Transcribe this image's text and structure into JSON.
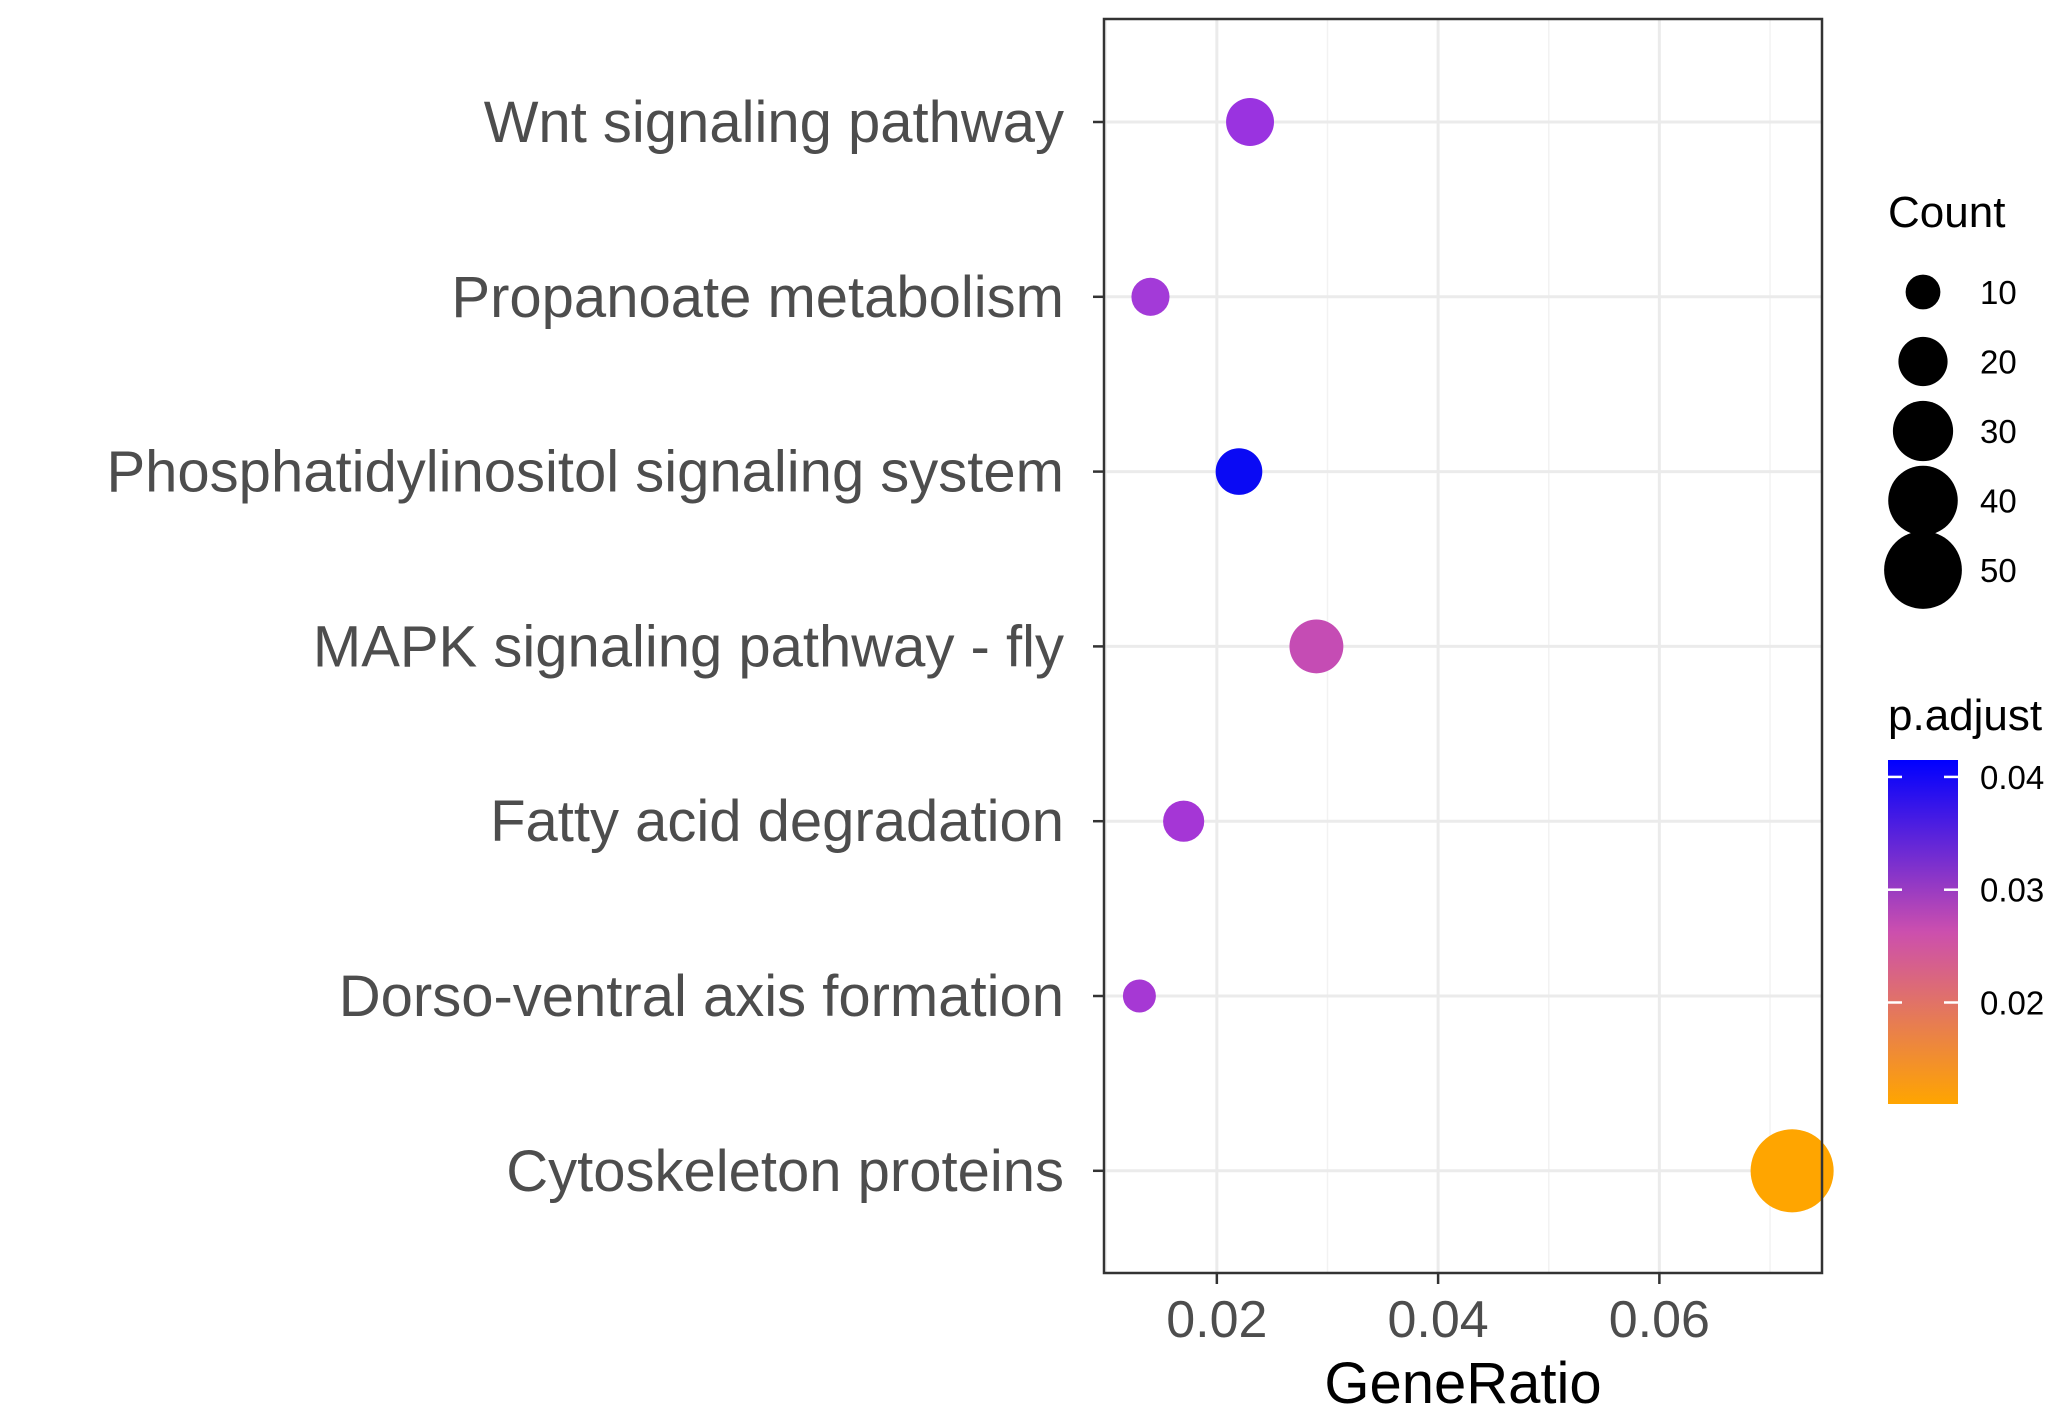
{
  "chart_data": {
    "type": "scatter",
    "title": "",
    "xlabel": "GeneRatio",
    "ylabel": "",
    "xlim": [
      0.0098,
      0.0747
    ],
    "x_ticks": [
      0.02,
      0.04,
      0.06
    ],
    "x_tick_labels": [
      "0.02",
      "0.04",
      "0.06"
    ],
    "grid": true,
    "points": [
      {
        "label": "Wnt signaling pathway",
        "x": 0.023,
        "count": 19,
        "p_adjust": 0.037,
        "color": "#9a33e0"
      },
      {
        "label": "Propanoate metabolism",
        "x": 0.014,
        "count": 12,
        "p_adjust": 0.033,
        "color": "#a33ad8"
      },
      {
        "label": "Phosphatidylinositol signaling system",
        "x": 0.022,
        "count": 18,
        "p_adjust": 0.043,
        "color": "#0a0af4"
      },
      {
        "label": "MAPK signaling pathway - fly",
        "x": 0.029,
        "count": 24,
        "p_adjust": 0.028,
        "color": "#c54cb4"
      },
      {
        "label": "Fatty acid degradation",
        "x": 0.017,
        "count": 14,
        "p_adjust": 0.033,
        "color": "#a536d6"
      },
      {
        "label": "Dorso-ventral axis formation",
        "x": 0.013,
        "count": 9,
        "p_adjust": 0.033,
        "color": "#a638d4"
      },
      {
        "label": "Cytoskeleton proteins",
        "x": 0.072,
        "count": 57,
        "p_adjust": 0.012,
        "color": "#ffa500"
      }
    ],
    "size_legend": {
      "title": "Count",
      "breaks": [
        10,
        20,
        30,
        40,
        50
      ],
      "labels": [
        "10",
        "20",
        "30",
        "40",
        "50"
      ]
    },
    "color_legend": {
      "title": "p.adjust",
      "range": [
        0.011,
        0.0415
      ],
      "breaks": [
        0.04,
        0.03,
        0.02
      ],
      "labels": [
        "0.04",
        "0.03",
        "0.02"
      ],
      "low_color": "#ffa500",
      "mid_color": "#cc4fae",
      "high_color": "#0000ff"
    }
  }
}
